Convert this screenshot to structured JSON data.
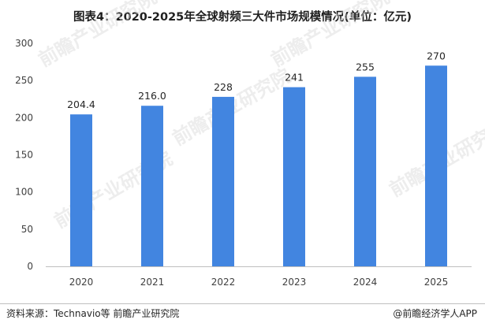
{
  "title": "图表4：2020-2025年全球射频三大件市场规模情况(单位：亿元)",
  "chart_data": {
    "type": "bar",
    "title": "图表4：2020-2025年全球射频三大件市场规模情况(单位：亿元)",
    "categories": [
      "2020",
      "2021",
      "2022",
      "2023",
      "2024",
      "2025"
    ],
    "values": [
      204.4,
      216.0,
      228,
      241,
      255,
      270
    ],
    "value_labels": [
      "204.4",
      "216.0",
      "228",
      "241",
      "255",
      "270"
    ],
    "ylim": [
      0,
      300
    ],
    "yticks": [
      0,
      50,
      100,
      150,
      200,
      250,
      300
    ],
    "xlabel": "",
    "ylabel": "",
    "grid": false,
    "legend": "none",
    "bar_color": "#4285e0"
  },
  "watermark": "前瞻产业研究院",
  "footer": {
    "source": "资料来源：Technavio等 前瞻产业研究院",
    "credit": "@前瞻经济学人APP"
  }
}
